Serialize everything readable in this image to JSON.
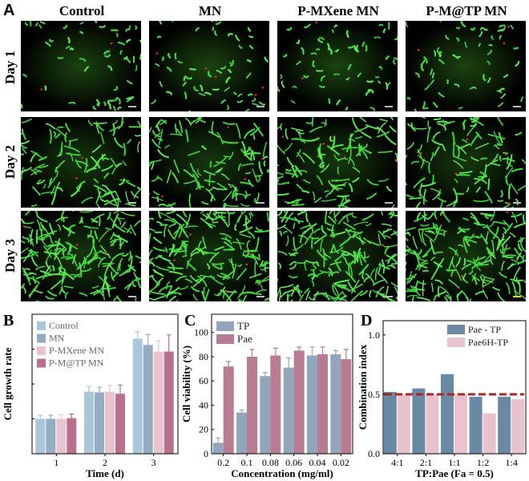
{
  "panelA": {
    "letter": "A",
    "columns": [
      "Control",
      "MN",
      "P-MXene MN",
      "P-M@TP MN"
    ],
    "rows": [
      "Day 1",
      "Day 2",
      "Day 3"
    ]
  },
  "chart_data": [
    {
      "panel": "B",
      "type": "bar",
      "categories": [
        "1",
        "2",
        "3"
      ],
      "series": [
        {
          "name": "Control",
          "color": "#a9c6da",
          "values": [
            1.0,
            1.78,
            3.3
          ],
          "errors": [
            0.1,
            0.15,
            0.2
          ]
        },
        {
          "name": "MN",
          "color": "#93aec2",
          "values": [
            1.0,
            1.76,
            3.12
          ],
          "errors": [
            0.1,
            0.15,
            0.3
          ]
        },
        {
          "name": "P-MXene MN",
          "color": "#e9c4cf",
          "values": [
            1.0,
            1.78,
            2.93
          ],
          "errors": [
            0.12,
            0.18,
            0.3
          ]
        },
        {
          "name": "P-M@TP MN",
          "color": "#b9708c",
          "values": [
            1.02,
            1.72,
            2.93
          ],
          "errors": [
            0.12,
            0.25,
            0.48
          ]
        }
      ],
      "xlabel": "Time (d)",
      "ylabel": "Cell growth rate",
      "ylim": [
        0,
        4
      ],
      "legend": "top-left"
    },
    {
      "panel": "C",
      "type": "bar",
      "categories": [
        "0.2",
        "0.1",
        "0.08",
        "0.06",
        "0.04",
        "0.02"
      ],
      "series": [
        {
          "name": "TP",
          "color": "#91a6ba",
          "values": [
            9,
            34,
            64,
            71,
            81,
            82
          ],
          "errors": [
            4,
            2,
            3,
            8,
            7,
            3
          ]
        },
        {
          "name": "Pae",
          "color": "#b97b91",
          "values": [
            72,
            80,
            81,
            85,
            82,
            78
          ],
          "errors": [
            4,
            6,
            6,
            3,
            6,
            8
          ]
        }
      ],
      "xlabel": "Concentration (mg/ml)",
      "ylabel": "Cell viability (%)",
      "yticks": [
        0,
        20,
        40,
        60,
        80,
        100
      ],
      "ylim": [
        0,
        115
      ],
      "legend": "top-left"
    },
    {
      "panel": "D",
      "type": "bar",
      "categories": [
        "4:1",
        "2:1",
        "1:1",
        "1:2",
        "1:4"
      ],
      "series": [
        {
          "name": "Pae - TP",
          "color": "#6a89a4",
          "values": [
            0.52,
            0.55,
            0.67,
            0.48,
            0.48
          ]
        },
        {
          "name": "Pae6H-TP",
          "color": "#e8c3ce",
          "values": [
            0.5,
            0.5,
            0.5,
            0.34,
            0.46
          ]
        }
      ],
      "xlabel": "TP:Pae (Fa = 0.5)",
      "ylabel": "Combination index",
      "yticks": [
        0.0,
        0.5,
        1.0
      ],
      "ylim": [
        0,
        1.12
      ],
      "reference_line": 0.5,
      "reference_color": "#a52a2a",
      "legend": "top-right"
    }
  ],
  "chart_labels": {
    "B": "B",
    "C": "C",
    "D": "D"
  }
}
